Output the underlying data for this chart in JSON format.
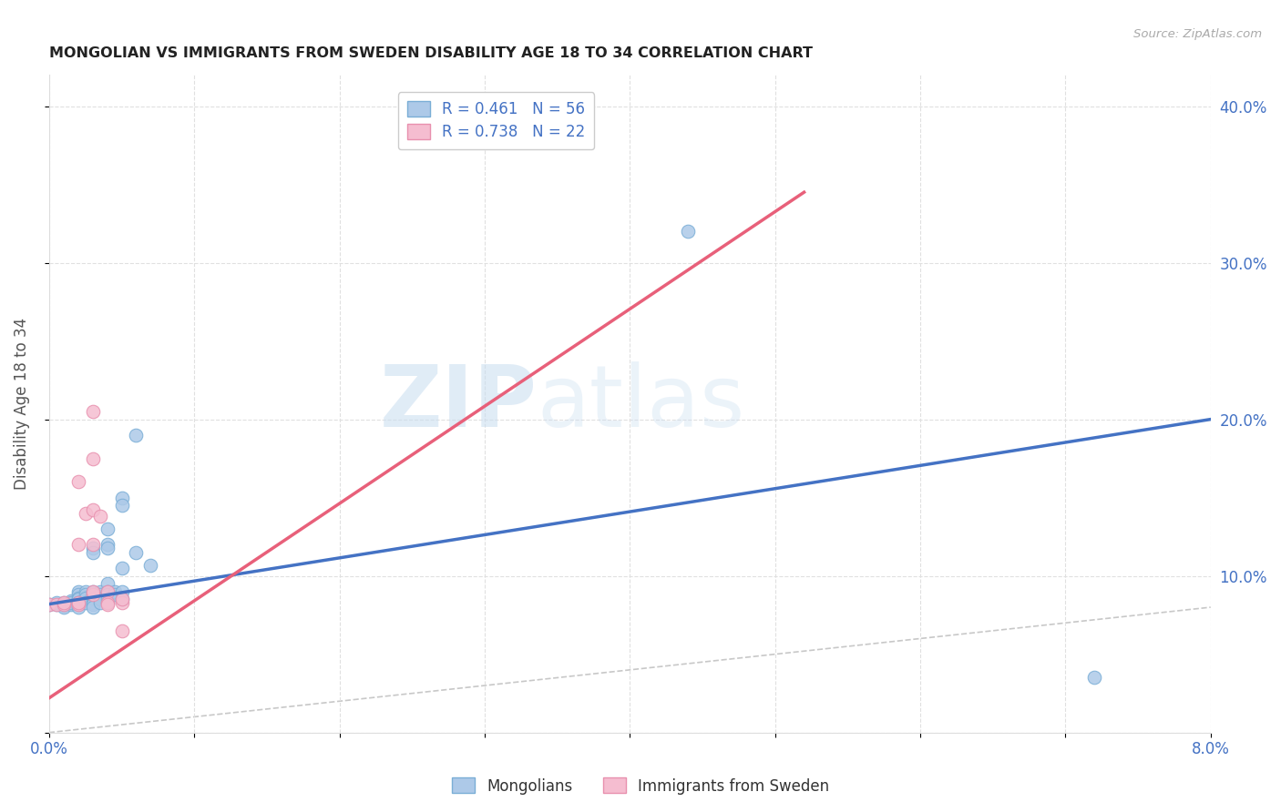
{
  "title": "MONGOLIAN VS IMMIGRANTS FROM SWEDEN DISABILITY AGE 18 TO 34 CORRELATION CHART",
  "source": "Source: ZipAtlas.com",
  "ylabel_label": "Disability Age 18 to 34",
  "xmin": 0.0,
  "xmax": 0.08,
  "ymin": 0.0,
  "ymax": 0.42,
  "xticks": [
    0.0,
    0.01,
    0.02,
    0.03,
    0.04,
    0.05,
    0.06,
    0.07,
    0.08
  ],
  "xtick_labels": [
    "0.0%",
    "",
    "",
    "",
    "",
    "",
    "",
    "",
    "8.0%"
  ],
  "yticks": [
    0.0,
    0.1,
    0.2,
    0.3,
    0.4
  ],
  "ytick_labels_right": [
    "",
    "10.0%",
    "20.0%",
    "30.0%",
    "40.0%"
  ],
  "legend_entries": [
    {
      "label": "R = 0.461   N = 56",
      "color": "#adc9e8"
    },
    {
      "label": "R = 0.738   N = 22",
      "color": "#f5bdd0"
    }
  ],
  "mongolian_color": "#adc9e8",
  "mongolian_edge": "#7aaed6",
  "sweden_color": "#f5bdd0",
  "sweden_edge": "#e890ae",
  "blue_line_color": "#4472c4",
  "pink_line_color": "#e8607a",
  "diag_line_color": "#c8c8c8",
  "blue_line": {
    "x0": 0.0,
    "y0": 0.082,
    "x1": 0.08,
    "y1": 0.2
  },
  "pink_line": {
    "x0": 0.0,
    "y0": 0.022,
    "x1": 0.052,
    "y1": 0.345
  },
  "mongolian_points": [
    [
      0.0,
      0.082
    ],
    [
      0.0005,
      0.082
    ],
    [
      0.0005,
      0.083
    ],
    [
      0.001,
      0.082
    ],
    [
      0.001,
      0.083
    ],
    [
      0.001,
      0.082
    ],
    [
      0.001,
      0.081
    ],
    [
      0.001,
      0.08
    ],
    [
      0.0015,
      0.083
    ],
    [
      0.0015,
      0.082
    ],
    [
      0.0015,
      0.084
    ],
    [
      0.0015,
      0.083
    ],
    [
      0.002,
      0.09
    ],
    [
      0.002,
      0.088
    ],
    [
      0.002,
      0.086
    ],
    [
      0.002,
      0.085
    ],
    [
      0.002,
      0.083
    ],
    [
      0.002,
      0.082
    ],
    [
      0.002,
      0.08
    ],
    [
      0.002,
      0.083
    ],
    [
      0.0025,
      0.09
    ],
    [
      0.0025,
      0.088
    ],
    [
      0.0025,
      0.086
    ],
    [
      0.0025,
      0.083
    ],
    [
      0.003,
      0.118
    ],
    [
      0.003,
      0.115
    ],
    [
      0.003,
      0.09
    ],
    [
      0.003,
      0.088
    ],
    [
      0.003,
      0.086
    ],
    [
      0.003,
      0.083
    ],
    [
      0.003,
      0.082
    ],
    [
      0.003,
      0.08
    ],
    [
      0.0035,
      0.09
    ],
    [
      0.0035,
      0.088
    ],
    [
      0.0035,
      0.085
    ],
    [
      0.0035,
      0.083
    ],
    [
      0.004,
      0.13
    ],
    [
      0.004,
      0.12
    ],
    [
      0.004,
      0.118
    ],
    [
      0.004,
      0.095
    ],
    [
      0.004,
      0.09
    ],
    [
      0.004,
      0.088
    ],
    [
      0.004,
      0.085
    ],
    [
      0.004,
      0.083
    ],
    [
      0.0045,
      0.09
    ],
    [
      0.0045,
      0.088
    ],
    [
      0.005,
      0.15
    ],
    [
      0.005,
      0.145
    ],
    [
      0.005,
      0.105
    ],
    [
      0.005,
      0.09
    ],
    [
      0.005,
      0.085
    ],
    [
      0.006,
      0.19
    ],
    [
      0.006,
      0.115
    ],
    [
      0.007,
      0.107
    ],
    [
      0.072,
      0.035
    ],
    [
      0.044,
      0.32
    ]
  ],
  "sweden_points": [
    [
      0.0,
      0.082
    ],
    [
      0.0005,
      0.082
    ],
    [
      0.001,
      0.082
    ],
    [
      0.001,
      0.083
    ],
    [
      0.002,
      0.082
    ],
    [
      0.002,
      0.083
    ],
    [
      0.002,
      0.12
    ],
    [
      0.002,
      0.16
    ],
    [
      0.0025,
      0.14
    ],
    [
      0.003,
      0.088
    ],
    [
      0.003,
      0.09
    ],
    [
      0.003,
      0.12
    ],
    [
      0.003,
      0.175
    ],
    [
      0.003,
      0.205
    ],
    [
      0.003,
      0.142
    ],
    [
      0.0035,
      0.138
    ],
    [
      0.004,
      0.09
    ],
    [
      0.004,
      0.083
    ],
    [
      0.004,
      0.082
    ],
    [
      0.005,
      0.083
    ],
    [
      0.005,
      0.085
    ],
    [
      0.005,
      0.065
    ]
  ],
  "watermark_zip": "ZIP",
  "watermark_atlas": "atlas",
  "background_color": "#ffffff",
  "grid_color": "#e0e0e0"
}
